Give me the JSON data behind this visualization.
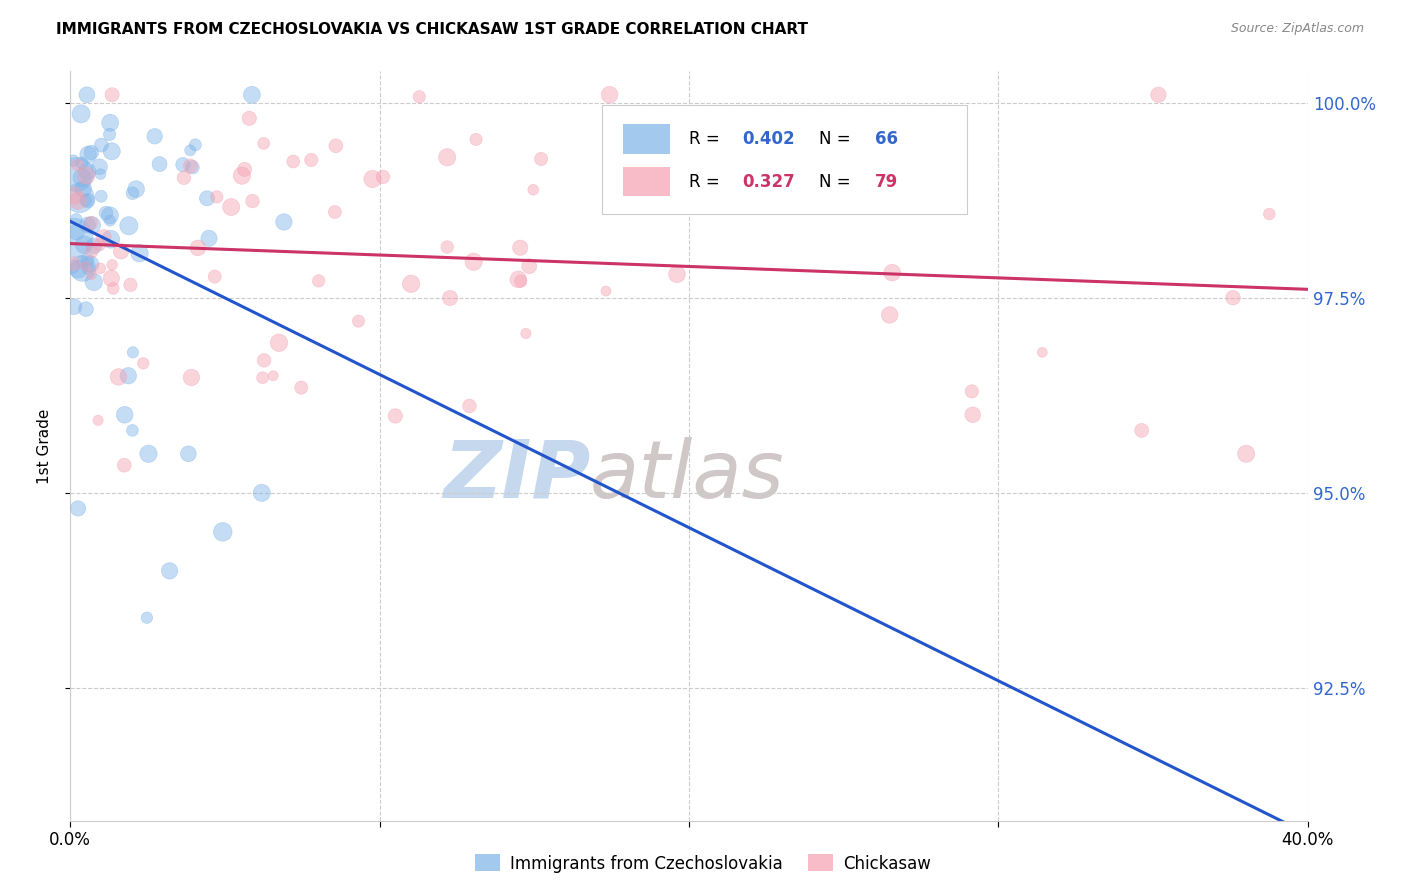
{
  "title": "IMMIGRANTS FROM CZECHOSLOVAKIA VS CHICKASAW 1ST GRADE CORRELATION CHART",
  "source": "Source: ZipAtlas.com",
  "ylabel": "1st Grade",
  "xlim": [
    0.0,
    0.4
  ],
  "ylim": [
    0.908,
    1.004
  ],
  "yticks": [
    0.925,
    0.95,
    0.975,
    1.0
  ],
  "ytick_labels": [
    "92.5%",
    "95.0%",
    "97.5%",
    "100.0%"
  ],
  "blue_R": 0.402,
  "blue_N": 66,
  "pink_R": 0.327,
  "pink_N": 79,
  "blue_color": "#7EB3E8",
  "pink_color": "#F4A0B0",
  "blue_line_color": "#2255CC",
  "pink_line_color": "#CC3366",
  "watermark_zip": "ZIP",
  "watermark_atlas": "atlas",
  "watermark_color_zip": "#C5D8EE",
  "watermark_color_atlas": "#D0C8C8",
  "legend_box_color": "#FFFFFF",
  "legend_border_color": "#DDDDDD",
  "blue_label": "Immigrants from Czechoslovakia",
  "pink_label": "Chickasaw"
}
